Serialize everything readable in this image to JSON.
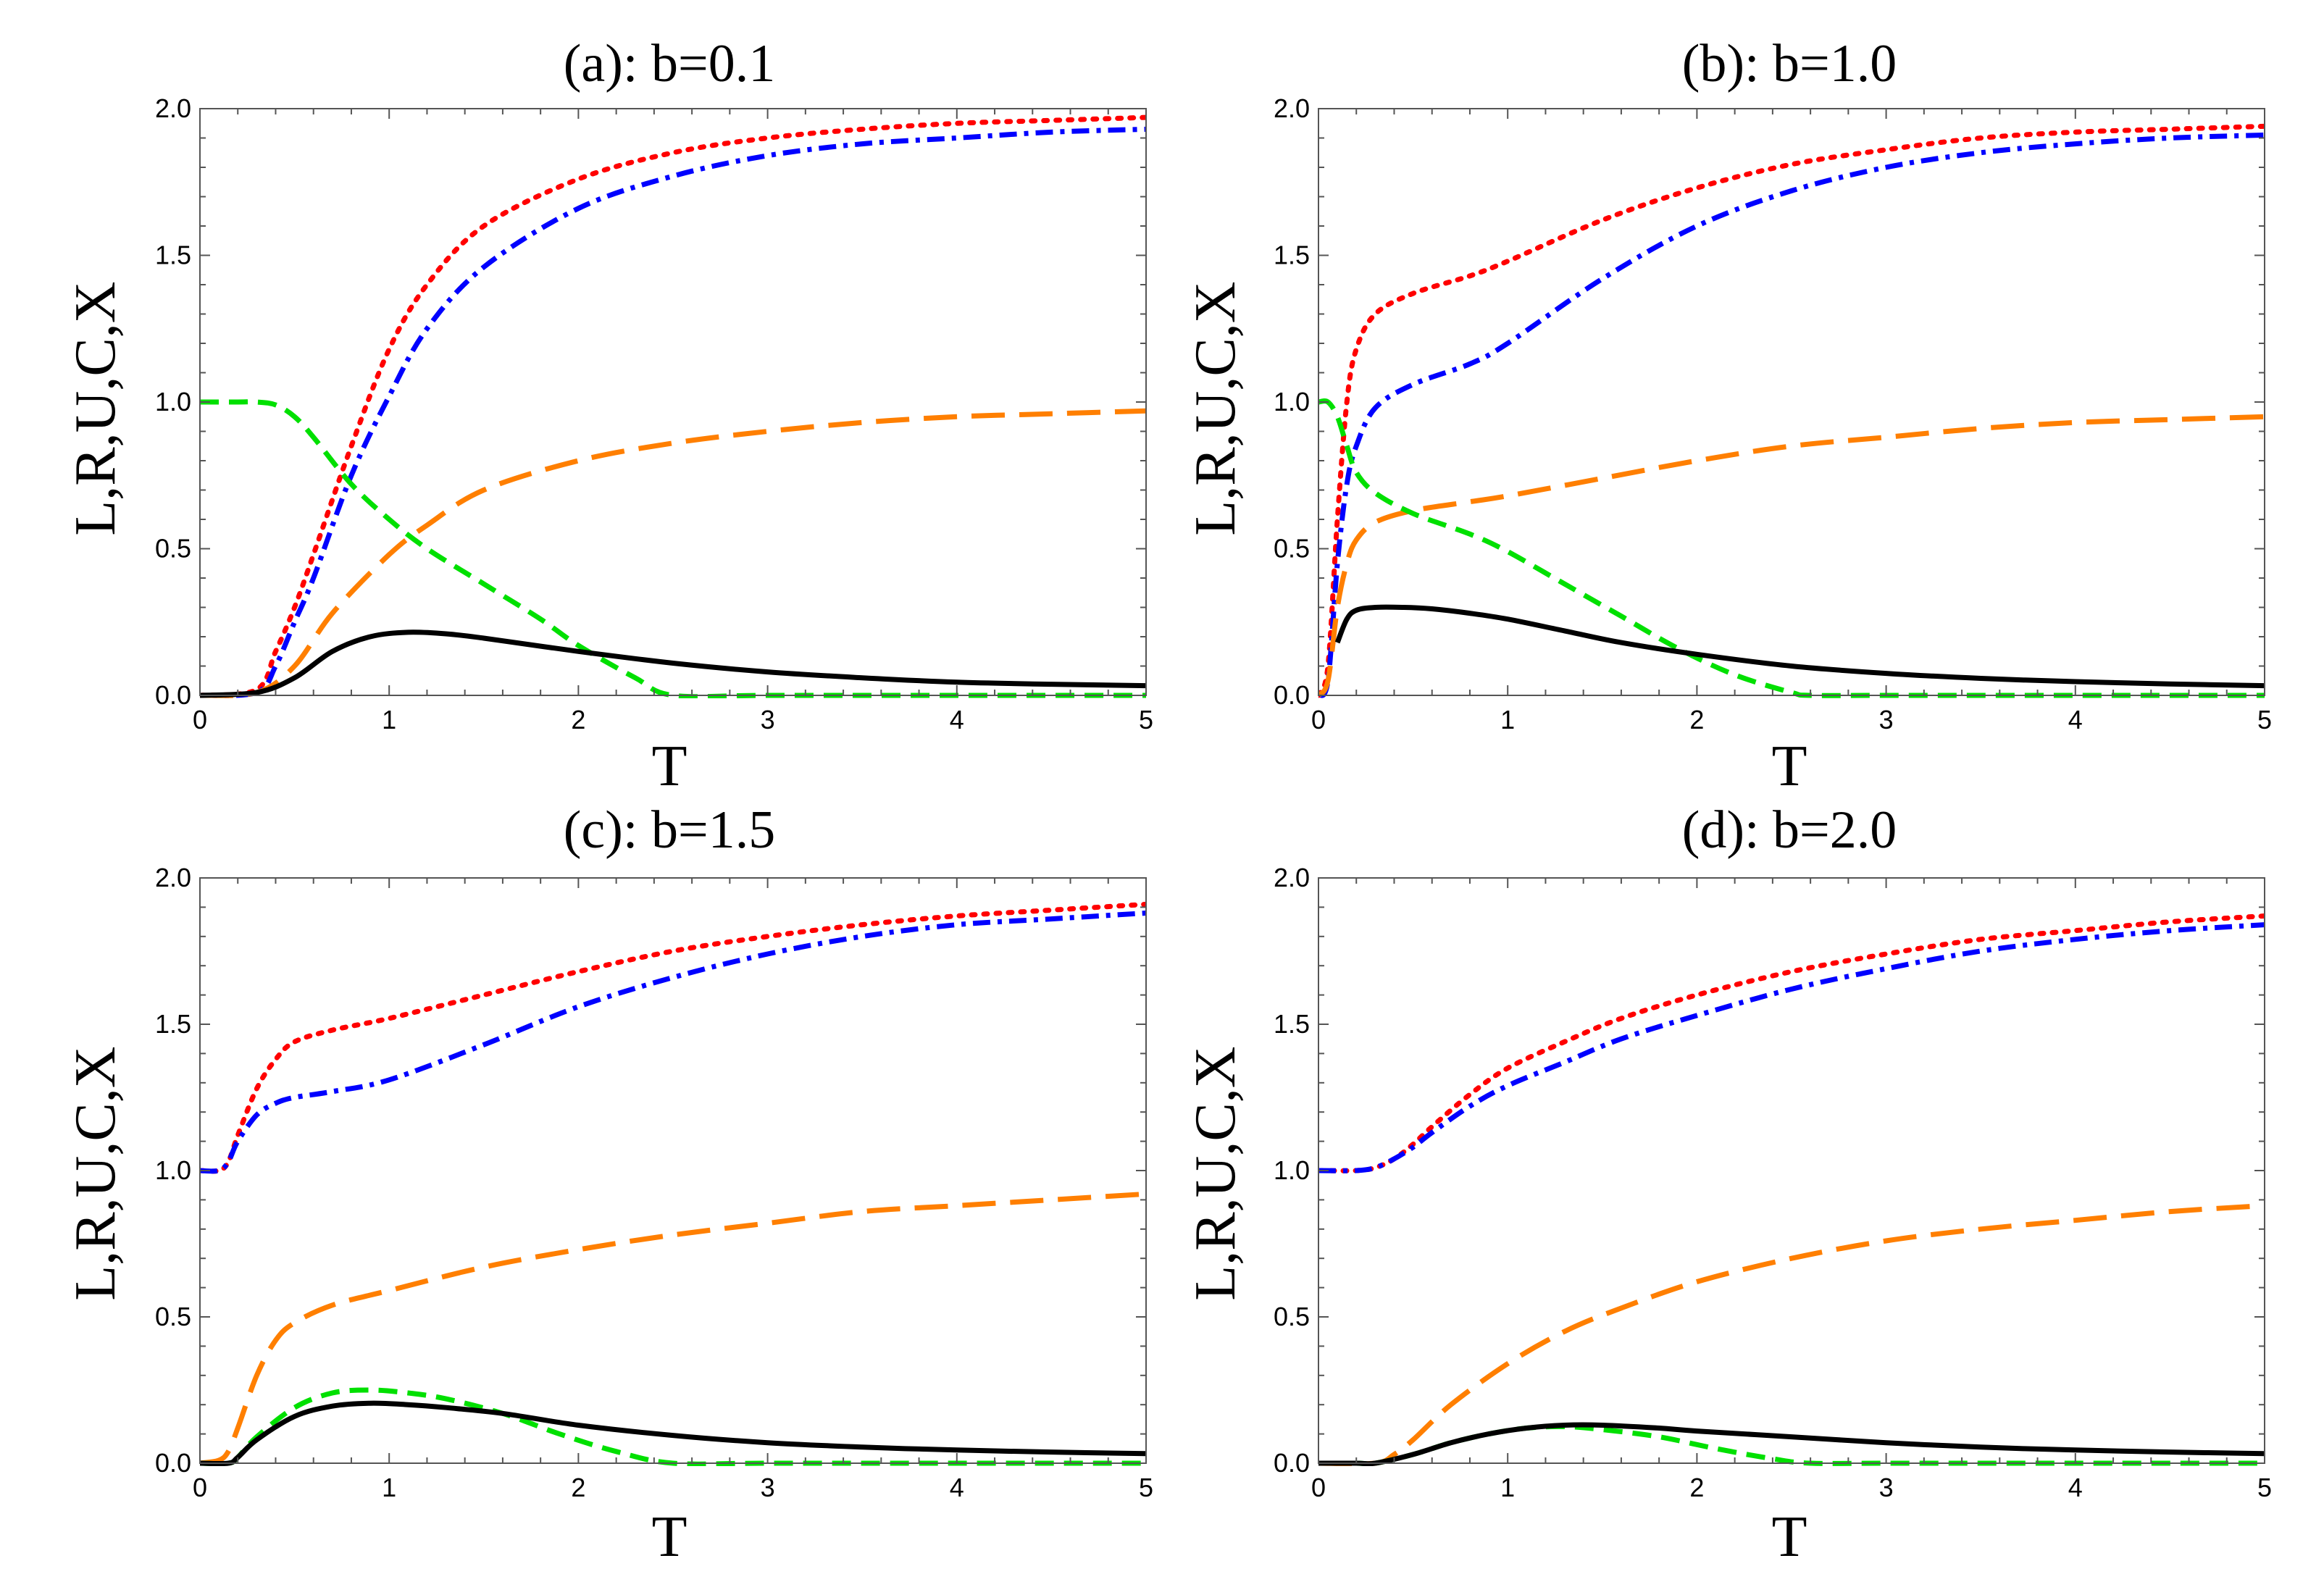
{
  "chart_data": [
    {
      "type": "line",
      "title": "(a): b=0.1",
      "xlabel": "T",
      "ylabel": "L,R,U,C,X",
      "xlim": [
        0,
        5
      ],
      "ylim": [
        0,
        2
      ],
      "xticks": [
        "0",
        "1",
        "2",
        "3",
        "4",
        "5"
      ],
      "yticks": [
        "0.0",
        "0.5",
        "1.0",
        "1.5",
        "2.0"
      ],
      "series": [
        {
          "name": "red-dotted",
          "color": "#ff0000",
          "style": "dotted",
          "x": [
            0,
            0.3,
            0.4,
            0.5,
            0.6,
            0.8,
            1.0,
            1.2,
            1.5,
            2.0,
            2.5,
            3.0,
            3.5,
            4.0,
            4.5,
            5.0
          ],
          "y": [
            0,
            0.02,
            0.15,
            0.3,
            0.48,
            0.85,
            1.18,
            1.4,
            1.6,
            1.76,
            1.85,
            1.9,
            1.93,
            1.95,
            1.96,
            1.97
          ]
        },
        {
          "name": "blue-dashdot",
          "color": "#0000ff",
          "style": "dashdot",
          "x": [
            0,
            0.3,
            0.4,
            0.5,
            0.6,
            0.8,
            1.0,
            1.2,
            1.5,
            2.0,
            2.5,
            3.0,
            3.5,
            4.0,
            4.5,
            5.0
          ],
          "y": [
            0,
            0.01,
            0.1,
            0.25,
            0.4,
            0.75,
            1.02,
            1.25,
            1.46,
            1.66,
            1.77,
            1.84,
            1.88,
            1.9,
            1.92,
            1.93
          ]
        },
        {
          "name": "orange-longdash",
          "color": "#ff7f00",
          "style": "longdash",
          "x": [
            0,
            0.3,
            0.5,
            0.7,
            1.0,
            1.2,
            1.5,
            2.0,
            2.5,
            3.0,
            3.5,
            4.0,
            4.5,
            5.0
          ],
          "y": [
            0,
            0.01,
            0.1,
            0.28,
            0.48,
            0.58,
            0.7,
            0.8,
            0.86,
            0.9,
            0.93,
            0.95,
            0.96,
            0.97
          ]
        },
        {
          "name": "green-dashed",
          "color": "#00e000",
          "style": "dashed",
          "x": [
            0,
            0.2,
            0.3,
            0.4,
            0.5,
            0.6,
            0.8,
            1.0,
            1.2,
            1.5,
            1.8,
            2.0,
            2.3,
            2.5,
            3.0,
            4.0,
            5.0
          ],
          "y": [
            1.0,
            1.0,
            1.0,
            0.99,
            0.95,
            0.88,
            0.72,
            0.6,
            0.5,
            0.38,
            0.26,
            0.17,
            0.06,
            0.0,
            0.0,
            0.0,
            0.0
          ]
        },
        {
          "name": "black-solid",
          "color": "#000000",
          "style": "solid",
          "x": [
            0,
            0.3,
            0.5,
            0.7,
            0.9,
            1.1,
            1.3,
            1.5,
            2.0,
            2.5,
            3.0,
            3.5,
            4.0,
            4.5,
            5.0
          ],
          "y": [
            0,
            0.01,
            0.06,
            0.15,
            0.2,
            0.215,
            0.21,
            0.195,
            0.15,
            0.11,
            0.08,
            0.06,
            0.045,
            0.038,
            0.033
          ]
        }
      ]
    },
    {
      "type": "line",
      "title": "(b): b=1.0",
      "xlabel": "T",
      "ylabel": "L,R,U,C,X",
      "xlim": [
        0,
        5
      ],
      "ylim": [
        0,
        2
      ],
      "xticks": [
        "0",
        "1",
        "2",
        "3",
        "4",
        "5"
      ],
      "yticks": [
        "0.0",
        "0.5",
        "1.0",
        "1.5",
        "2.0"
      ],
      "series": [
        {
          "name": "red-dotted",
          "color": "#ff0000",
          "style": "dotted",
          "x": [
            0,
            0.05,
            0.1,
            0.15,
            0.2,
            0.3,
            0.5,
            0.8,
            1.0,
            1.5,
            2.0,
            2.5,
            3.0,
            3.5,
            4.0,
            4.5,
            5.0
          ],
          "y": [
            0,
            0.1,
            0.6,
            1.0,
            1.18,
            1.3,
            1.37,
            1.43,
            1.48,
            1.62,
            1.73,
            1.81,
            1.86,
            1.9,
            1.92,
            1.93,
            1.94
          ]
        },
        {
          "name": "blue-dashdot",
          "color": "#0000ff",
          "style": "dashdot",
          "x": [
            0,
            0.05,
            0.1,
            0.15,
            0.2,
            0.3,
            0.5,
            0.8,
            1.0,
            1.5,
            2.0,
            2.5,
            3.0,
            3.5,
            4.0,
            4.5,
            5.0
          ],
          "y": [
            0,
            0.05,
            0.45,
            0.72,
            0.85,
            0.98,
            1.06,
            1.13,
            1.2,
            1.42,
            1.6,
            1.72,
            1.8,
            1.85,
            1.88,
            1.9,
            1.91
          ]
        },
        {
          "name": "orange-longdash",
          "color": "#ff7f00",
          "style": "longdash",
          "x": [
            0,
            0.05,
            0.1,
            0.15,
            0.2,
            0.3,
            0.5,
            0.8,
            1.0,
            1.5,
            2.0,
            2.5,
            3.0,
            3.5,
            4.0,
            4.5,
            5.0
          ],
          "y": [
            0,
            0.05,
            0.3,
            0.45,
            0.53,
            0.59,
            0.63,
            0.66,
            0.68,
            0.74,
            0.8,
            0.85,
            0.88,
            0.91,
            0.93,
            0.94,
            0.95
          ]
        },
        {
          "name": "green-dashed",
          "color": "#00e000",
          "style": "dashed",
          "x": [
            0,
            0.05,
            0.1,
            0.15,
            0.2,
            0.3,
            0.5,
            0.8,
            1.0,
            1.3,
            1.6,
            1.9,
            2.2,
            2.5,
            2.6,
            3.0,
            4.0,
            5.0
          ],
          "y": [
            1.0,
            1.0,
            0.95,
            0.85,
            0.76,
            0.69,
            0.62,
            0.55,
            0.49,
            0.38,
            0.27,
            0.16,
            0.07,
            0.01,
            0.0,
            0.0,
            0.0,
            0.0
          ]
        },
        {
          "name": "black-solid",
          "color": "#000000",
          "style": "solid",
          "x": [
            0.1,
            0.15,
            0.2,
            0.3,
            0.45,
            0.6,
            0.8,
            1.0,
            1.3,
            1.6,
            2.0,
            2.5,
            3.0,
            3.5,
            4.0,
            4.5,
            5.0
          ],
          "y": [
            0.18,
            0.26,
            0.29,
            0.3,
            0.3,
            0.295,
            0.28,
            0.26,
            0.22,
            0.18,
            0.14,
            0.1,
            0.075,
            0.058,
            0.047,
            0.039,
            0.033
          ]
        }
      ]
    },
    {
      "type": "line",
      "title": "(c): b=1.5",
      "xlabel": "T",
      "ylabel": "L,R,U,C,X",
      "xlim": [
        0,
        5
      ],
      "ylim": [
        0,
        2
      ],
      "xticks": [
        "0",
        "1",
        "2",
        "3",
        "4",
        "5"
      ],
      "yticks": [
        "0.0",
        "0.5",
        "1.0",
        "1.5",
        "2.0"
      ],
      "series": [
        {
          "name": "red-dotted",
          "color": "#ff0000",
          "style": "dotted",
          "x": [
            0,
            0.1,
            0.15,
            0.2,
            0.3,
            0.4,
            0.5,
            0.7,
            1.0,
            1.5,
            2.0,
            2.5,
            3.0,
            3.5,
            4.0,
            4.5,
            5.0
          ],
          "y": [
            1.0,
            1.0,
            1.03,
            1.12,
            1.28,
            1.38,
            1.44,
            1.48,
            1.52,
            1.6,
            1.68,
            1.75,
            1.8,
            1.84,
            1.87,
            1.89,
            1.91
          ]
        },
        {
          "name": "blue-dashdot",
          "color": "#0000ff",
          "style": "dashdot",
          "x": [
            0,
            0.1,
            0.15,
            0.2,
            0.3,
            0.4,
            0.5,
            0.7,
            1.0,
            1.5,
            2.0,
            2.5,
            3.0,
            3.5,
            4.0,
            4.5,
            5.0
          ],
          "y": [
            1.0,
            1.0,
            1.03,
            1.1,
            1.19,
            1.23,
            1.25,
            1.27,
            1.31,
            1.43,
            1.56,
            1.66,
            1.74,
            1.8,
            1.84,
            1.86,
            1.88
          ]
        },
        {
          "name": "orange-longdash",
          "color": "#ff7f00",
          "style": "longdash",
          "x": [
            0,
            0.1,
            0.15,
            0.2,
            0.3,
            0.4,
            0.5,
            0.7,
            1.0,
            1.5,
            2.0,
            2.5,
            3.0,
            3.5,
            4.0,
            4.5,
            5.0
          ],
          "y": [
            0,
            0.01,
            0.04,
            0.12,
            0.3,
            0.42,
            0.48,
            0.54,
            0.59,
            0.67,
            0.73,
            0.78,
            0.82,
            0.86,
            0.88,
            0.9,
            0.92
          ]
        },
        {
          "name": "green-dashed",
          "color": "#00e000",
          "style": "dashed",
          "x": [
            0,
            0.15,
            0.2,
            0.3,
            0.5,
            0.7,
            0.9,
            1.1,
            1.3,
            1.6,
            1.9,
            2.2,
            2.5,
            3.0,
            4.0,
            5.0
          ],
          "y": [
            0,
            0.0,
            0.02,
            0.09,
            0.19,
            0.24,
            0.25,
            0.24,
            0.22,
            0.17,
            0.1,
            0.04,
            0.0,
            0.0,
            0.0,
            0.0
          ]
        },
        {
          "name": "black-solid",
          "color": "#000000",
          "style": "solid",
          "x": [
            0,
            0.15,
            0.2,
            0.3,
            0.5,
            0.7,
            0.9,
            1.1,
            1.3,
            1.6,
            2.0,
            2.5,
            3.0,
            3.5,
            4.0,
            4.5,
            5.0
          ],
          "y": [
            0,
            0.0,
            0.02,
            0.08,
            0.16,
            0.195,
            0.205,
            0.2,
            0.19,
            0.17,
            0.13,
            0.095,
            0.07,
            0.055,
            0.045,
            0.038,
            0.033
          ]
        }
      ]
    },
    {
      "type": "line",
      "title": "(d): b=2.0",
      "xlabel": "T",
      "ylabel": "L,R,U,C,X",
      "xlim": [
        0,
        5
      ],
      "ylim": [
        0,
        2
      ],
      "xticks": [
        "0",
        "1",
        "2",
        "3",
        "4",
        "5"
      ],
      "yticks": [
        "0.0",
        "0.5",
        "1.0",
        "1.5",
        "2.0"
      ],
      "series": [
        {
          "name": "red-dotted",
          "color": "#ff0000",
          "style": "dotted",
          "x": [
            0,
            0.2,
            0.3,
            0.4,
            0.5,
            0.6,
            0.8,
            1.0,
            1.3,
            1.6,
            2.0,
            2.5,
            3.0,
            3.5,
            4.0,
            4.5,
            5.0
          ],
          "y": [
            1.0,
            1.0,
            1.01,
            1.04,
            1.09,
            1.15,
            1.26,
            1.35,
            1.44,
            1.52,
            1.6,
            1.68,
            1.74,
            1.79,
            1.82,
            1.85,
            1.87
          ]
        },
        {
          "name": "blue-dashdot",
          "color": "#0000ff",
          "style": "dashdot",
          "x": [
            0,
            0.2,
            0.3,
            0.4,
            0.5,
            0.6,
            0.8,
            1.0,
            1.3,
            1.6,
            2.0,
            2.5,
            3.0,
            3.5,
            4.0,
            4.5,
            5.0
          ],
          "y": [
            1.0,
            1.0,
            1.01,
            1.04,
            1.08,
            1.13,
            1.22,
            1.29,
            1.37,
            1.45,
            1.53,
            1.62,
            1.69,
            1.75,
            1.79,
            1.82,
            1.84
          ]
        },
        {
          "name": "orange-longdash",
          "color": "#ff7f00",
          "style": "longdash",
          "x": [
            0,
            0.3,
            0.4,
            0.5,
            0.7,
            1.0,
            1.3,
            1.6,
            2.0,
            2.5,
            3.0,
            3.5,
            4.0,
            4.5,
            5.0
          ],
          "y": [
            0,
            0.0,
            0.03,
            0.08,
            0.2,
            0.34,
            0.45,
            0.53,
            0.62,
            0.7,
            0.76,
            0.8,
            0.83,
            0.86,
            0.88
          ]
        },
        {
          "name": "green-dashed",
          "color": "#00e000",
          "style": "dashed",
          "x": [
            0,
            0.2,
            0.3,
            0.5,
            0.7,
            0.9,
            1.1,
            1.3,
            1.5,
            1.8,
            2.1,
            2.4,
            2.6,
            3.0,
            4.0,
            5.0
          ],
          "y": [
            0,
            0.0,
            0.0,
            0.03,
            0.07,
            0.1,
            0.12,
            0.125,
            0.115,
            0.09,
            0.05,
            0.015,
            0.0,
            0.0,
            0.0,
            0.0
          ]
        },
        {
          "name": "black-solid",
          "color": "#000000",
          "style": "solid",
          "x": [
            0,
            0.2,
            0.3,
            0.5,
            0.7,
            0.9,
            1.1,
            1.3,
            1.5,
            1.8,
            2.0,
            2.5,
            3.0,
            3.5,
            4.0,
            4.5,
            5.0
          ],
          "y": [
            0,
            0.0,
            0.0,
            0.03,
            0.07,
            0.1,
            0.12,
            0.13,
            0.13,
            0.12,
            0.11,
            0.09,
            0.07,
            0.055,
            0.045,
            0.038,
            0.033
          ]
        }
      ]
    }
  ]
}
